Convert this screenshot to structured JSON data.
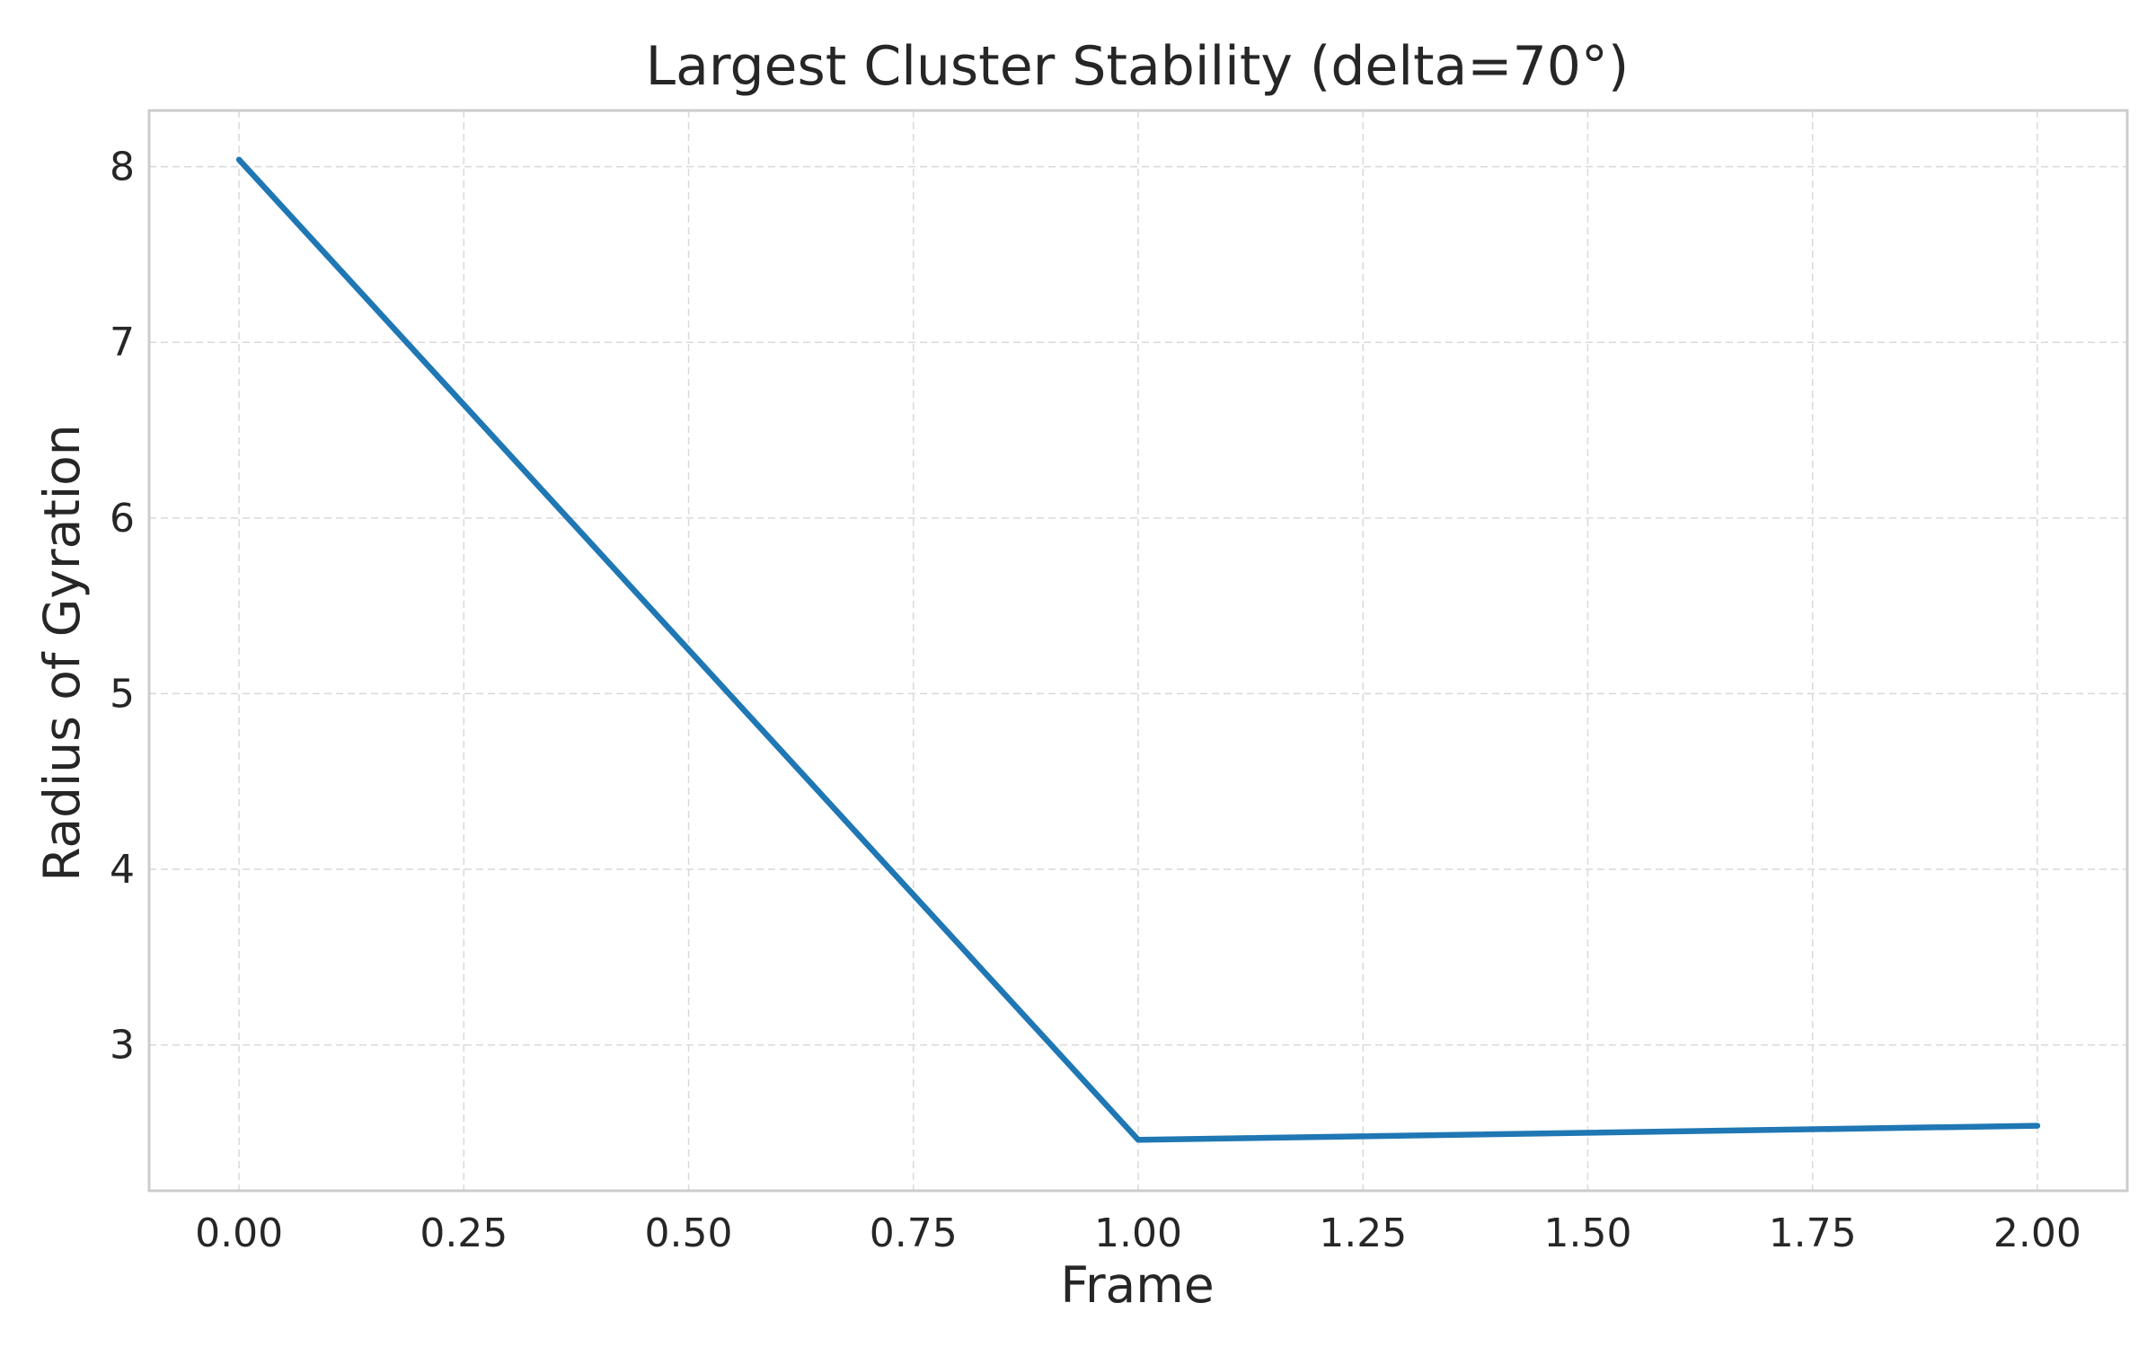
{
  "chart_data": {
    "type": "line",
    "title": "Largest Cluster Stability (delta=70°)",
    "xlabel": "Frame",
    "ylabel": "Radius of Gyration",
    "xlim": [
      -0.1,
      2.1
    ],
    "ylim": [
      2.17,
      8.32
    ],
    "xticks": [
      0.0,
      0.25,
      0.5,
      0.75,
      1.0,
      1.25,
      1.5,
      1.75,
      2.0
    ],
    "xtick_labels": [
      "0.00",
      "0.25",
      "0.50",
      "0.75",
      "1.00",
      "1.25",
      "1.50",
      "1.75",
      "2.00"
    ],
    "yticks": [
      3,
      4,
      5,
      6,
      7,
      8
    ],
    "ytick_labels": [
      "3",
      "4",
      "5",
      "6",
      "7",
      "8"
    ],
    "grid": true,
    "series": [
      {
        "x": [
          0,
          1,
          2
        ],
        "y": [
          8.04,
          2.46,
          2.54
        ],
        "color": "#1f77b4"
      }
    ]
  }
}
